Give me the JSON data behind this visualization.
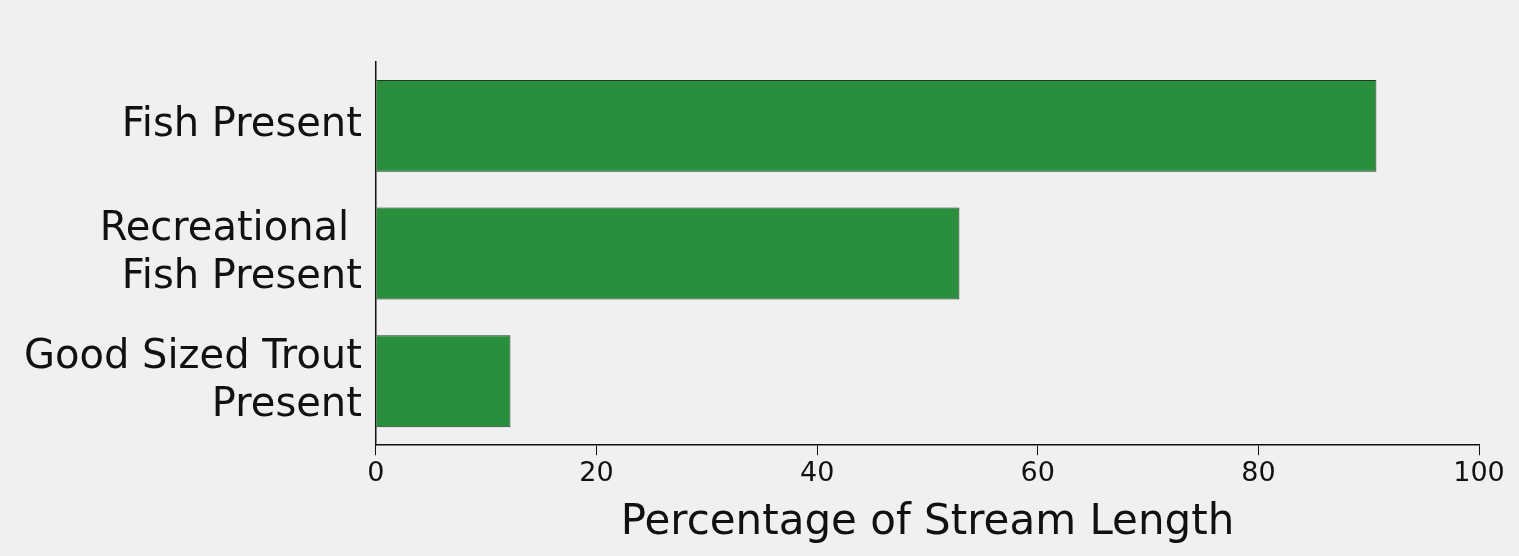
{
  "chart_data": {
    "type": "bar",
    "orientation": "horizontal",
    "xlabel": "Percentage of Stream Length",
    "categories": [
      "Fish Present",
      "Recreational \nFish Present",
      "Good Sized Trout\nPresent"
    ],
    "values": [
      90.7,
      52.9,
      12.2
    ],
    "color": "#2a8f3c",
    "xlim": [
      0,
      100
    ],
    "xticks": [
      0,
      20,
      40,
      60,
      80,
      100
    ],
    "grid": false,
    "legend": false
  }
}
